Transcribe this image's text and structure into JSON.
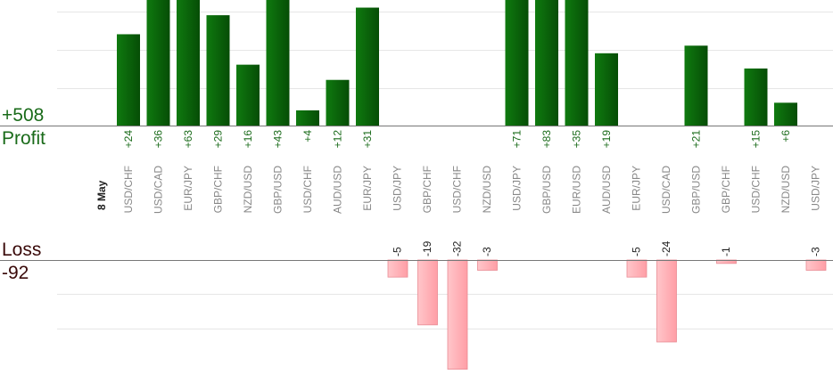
{
  "summary": {
    "profit_total": "+508",
    "profit_label": "Profit",
    "loss_label": "Loss",
    "loss_total": "-92"
  },
  "colors": {
    "profit_bar": "#0b6a0b",
    "loss_bar": "#ffb3b8",
    "profit_text": "#1a6b1a",
    "loss_text": "#3a0a0a",
    "pair_text": "#888888",
    "gridline": "#e6e6e6",
    "axis": "#777777"
  },
  "chart_data": {
    "type": "bar",
    "date_label": "8 May",
    "categories": [
      "USD/CHF",
      "USD/CAD",
      "EUR/JPY",
      "GBP/CHF",
      "NZD/USD",
      "GBP/USD",
      "USD/CHF",
      "AUD/USD",
      "EUR/JPY",
      "USD/JPY",
      "GBP/CHF",
      "USD/CHF",
      "NZD/USD",
      "USD/JPY",
      "GBP/USD",
      "EUR/USD",
      "AUD/USD",
      "EUR/JPY",
      "USD/CAD",
      "GBP/USD",
      "GBP/CHF",
      "USD/CHF",
      "NZD/USD",
      "USD/JPY"
    ],
    "series": [
      {
        "values": [
          24,
          36,
          63,
          29,
          16,
          43,
          4,
          12,
          31,
          null,
          null,
          null,
          null,
          71,
          83,
          35,
          19,
          null,
          null,
          21,
          null,
          15,
          6,
          null
        ],
        "labels": [
          "+24",
          "+36",
          "+63",
          "+29",
          "+16",
          "+43",
          "+4",
          "+12",
          "+31",
          "",
          "",
          "",
          "",
          "+71",
          "+83",
          "+35",
          "+19",
          "",
          "",
          "+21",
          "",
          "+15",
          "+6",
          ""
        ]
      },
      {
        "values": [
          null,
          null,
          null,
          null,
          null,
          null,
          null,
          null,
          null,
          -5,
          -19,
          -32,
          -3,
          null,
          null,
          null,
          null,
          -5,
          -24,
          null,
          -1,
          null,
          null,
          -3
        ],
        "labels": [
          "",
          "",
          "",
          "",
          "",
          "",
          "",
          "",
          "",
          "-5",
          "-19",
          "-32",
          "-3",
          "",
          "",
          "",
          "",
          "-5",
          "-24",
          "",
          "-1",
          "",
          "",
          "-3"
        ]
      }
    ],
    "ylim_profit": [
      0,
      33
    ],
    "ylim_loss": [
      -30,
      0
    ],
    "grid": true
  }
}
